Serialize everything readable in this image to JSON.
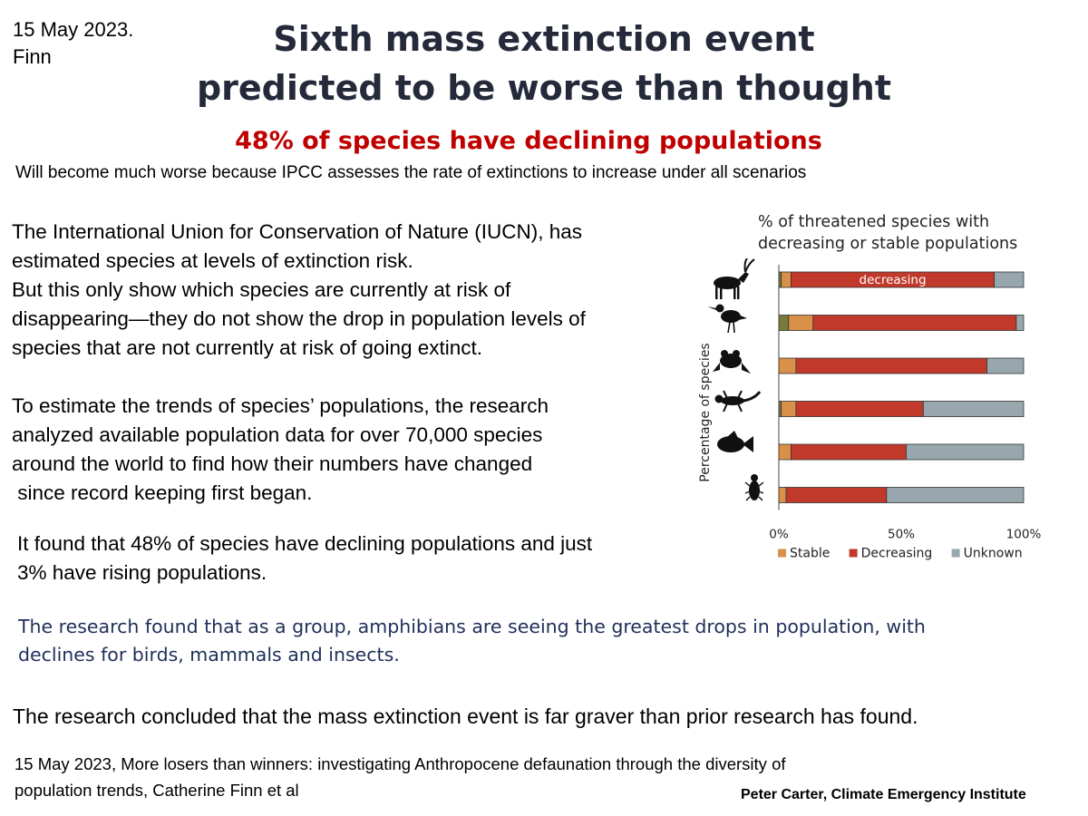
{
  "header": {
    "date": "15 May 2023.",
    "author": "Finn",
    "title_line1": "Sixth mass extinction event",
    "title_line2": "predicted to be worse than thought",
    "subtitle": "48% of species have declining populations",
    "note": "Will become much worse because IPCC assesses the rate of extinctions to increase under all scenarios"
  },
  "body": {
    "p1_lines": [
      "The International Union for Conservation of Nature (IUCN), has",
      "estimated  species at levels of  extinction risk.",
      "But this only show which species are currently at risk of",
      "disappearing—they do not show the drop in population levels of",
      "species that are not currently at risk of going extinct."
    ],
    "p2_lines": [
      "To estimate the trends of species’ populations, the research",
      "analyzed available population data for over 70,000 species",
      "around the world to find how their numbers have changed",
      " since record keeping first began."
    ],
    "p3_lines": [
      "It found that 48% of species have declining populations and just",
      "3% have rising populations."
    ],
    "p4_lines": [
      "The research found that as a group, amphibians are seeing the greatest drops in population, with",
      "declines for birds, mammals and insects."
    ],
    "p5": "The research concluded that the mass extinction event is far graver than prior research has found.",
    "citation_lines": [
      "15 May 2023, More losers than winners: investigating Anthropocene defaunation through the diversity of",
      "population trends, Catherine Finn et al"
    ],
    "credit": "Peter Carter, Climate Emergency Institute"
  },
  "chart_data": {
    "type": "bar",
    "orientation": "horizontal",
    "stacked": true,
    "title_lines": [
      "% of threatened species with",
      "decreasing or stable populations"
    ],
    "ylabel": "Percentage of species",
    "xlim": [
      0,
      100
    ],
    "x_ticks": [
      "0%",
      "50%",
      "100%"
    ],
    "categories": [
      "antelope-icon",
      "bird-icon",
      "frog-icon",
      "lizard-icon",
      "fish-icon",
      "beetle-icon"
    ],
    "series": [
      {
        "name": "",
        "color": "#7a7a3a",
        "values": [
          1,
          4,
          0,
          1,
          0,
          0
        ]
      },
      {
        "name": "Stable",
        "color": "#d9914a",
        "values": [
          4,
          10,
          7,
          6,
          5,
          3
        ]
      },
      {
        "name": "Decreasing",
        "color": "#c0392b",
        "values": [
          83,
          83,
          78,
          52,
          47,
          41
        ]
      },
      {
        "name": "Unknown",
        "color": "#98a6ad",
        "values": [
          12,
          3,
          15,
          41,
          48,
          56
        ]
      }
    ],
    "bar_annotation": "decreasing",
    "legend_position": "bottom",
    "grid": false
  }
}
